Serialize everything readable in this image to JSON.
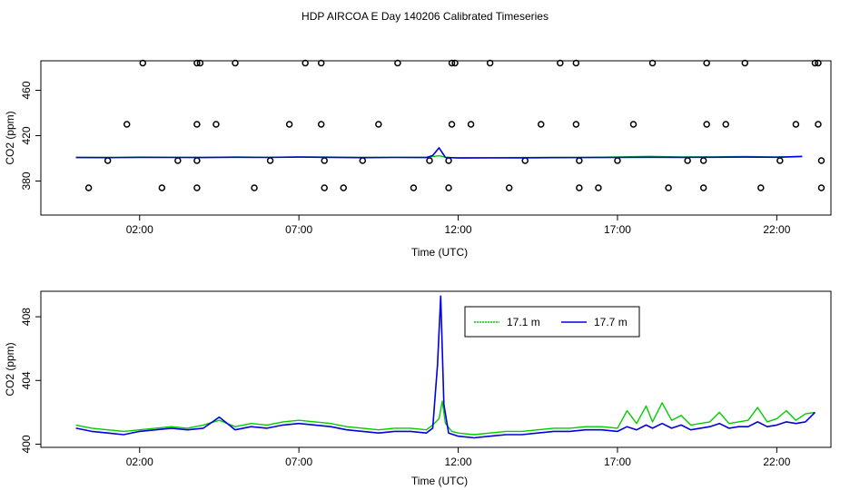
{
  "title": "HDP AIRCOA E  Day 140206  Calibrated Timeseries",
  "colors": {
    "series_1": "#00cc00",
    "series_2": "#0000dd",
    "points": "#000000",
    "axes": "#000000"
  },
  "chart_data": [
    {
      "type": "scatter+line",
      "xlabel": "Time (UTC)",
      "ylabel": "CO2 (ppm)",
      "xlim": [
        -1.1,
        23.7
      ],
      "ylim": [
        350,
        486
      ],
      "xticks": [
        2,
        7,
        12,
        17,
        22
      ],
      "xtick_labels": [
        "02:00",
        "07:00",
        "12:00",
        "17:00",
        "22:00"
      ],
      "yticks": [
        380,
        420,
        460
      ],
      "ytick_labels": [
        "380",
        "420",
        "460"
      ],
      "grid": false,
      "points": {
        "name": "",
        "x": [
          0.4,
          1.0,
          1.6,
          2.1,
          2.7,
          3.2,
          3.8,
          3.8,
          3.8,
          3.8,
          3.9,
          4.4,
          5.0,
          5.6,
          6.1,
          6.7,
          7.2,
          7.7,
          7.7,
          7.8,
          7.8,
          8.4,
          9.0,
          9.5,
          10.1,
          10.6,
          11.1,
          11.7,
          11.7,
          11.8,
          11.8,
          11.9,
          12.4,
          13.0,
          13.6,
          14.1,
          14.6,
          15.2,
          15.7,
          15.7,
          15.8,
          15.8,
          16.4,
          17.0,
          17.5,
          18.1,
          18.6,
          19.2,
          19.7,
          19.7,
          19.8,
          19.8,
          20.4,
          21.0,
          21.5,
          22.1,
          22.6,
          23.2,
          23.3,
          23.3,
          23.4,
          23.4
        ],
        "y": [
          374,
          398,
          430,
          484,
          374,
          398,
          374,
          398,
          430,
          484,
          484,
          430,
          484,
          374,
          398,
          430,
          484,
          484,
          430,
          398,
          374,
          374,
          398,
          430,
          484,
          374,
          398,
          374,
          398,
          430,
          484,
          484,
          430,
          484,
          374,
          398,
          430,
          484,
          484,
          430,
          398,
          374,
          374,
          398,
          430,
          484,
          374,
          398,
          374,
          398,
          430,
          484,
          430,
          484,
          374,
          398,
          430,
          484,
          484,
          430,
          398,
          374
        ]
      },
      "series": [
        {
          "name": "17.1 m",
          "x": [
            0,
            1,
            2,
            3,
            4,
            5,
            6,
            7,
            8,
            9,
            10,
            11,
            11.2,
            11.4,
            11.6,
            12,
            13,
            14,
            15,
            16,
            17,
            18,
            19,
            20,
            21,
            22,
            22.8
          ],
          "y": [
            400.9,
            400.8,
            401.1,
            401.0,
            400.9,
            401.2,
            401.0,
            401.3,
            401.1,
            400.8,
            401.0,
            400.9,
            401.5,
            402.3,
            401.0,
            400.5,
            400.6,
            400.7,
            400.8,
            400.9,
            401.2,
            401.8,
            401.3,
            401.4,
            401.6,
            401.3,
            401.8
          ]
        },
        {
          "name": "17.7 m",
          "x": [
            0,
            1,
            2,
            3,
            4,
            5,
            6,
            7,
            8,
            9,
            10,
            11,
            11.2,
            11.4,
            11.6,
            12,
            13,
            14,
            15,
            16,
            17,
            18,
            19,
            20,
            21,
            22,
            22.8
          ],
          "y": [
            400.7,
            400.6,
            400.9,
            400.8,
            400.7,
            401.0,
            400.8,
            401.1,
            400.9,
            400.6,
            400.8,
            400.7,
            402.5,
            409.3,
            400.8,
            400.3,
            400.4,
            400.5,
            400.6,
            400.7,
            400.8,
            401.0,
            400.9,
            401.0,
            401.1,
            401.0,
            401.7
          ]
        }
      ]
    },
    {
      "type": "line",
      "xlabel": "Time (UTC)",
      "ylabel": "CO2 (ppm)",
      "xlim": [
        -1.1,
        23.7
      ],
      "ylim": [
        399.8,
        409.6
      ],
      "xticks": [
        2,
        7,
        12,
        17,
        22
      ],
      "xtick_labels": [
        "02:00",
        "07:00",
        "12:00",
        "17:00",
        "22:00"
      ],
      "yticks": [
        400,
        404,
        408
      ],
      "ytick_labels": [
        "400",
        "404",
        "408"
      ],
      "grid": false,
      "legend": {
        "placement": "top-center",
        "entries": [
          "17.1 m",
          "17.7 m"
        ]
      },
      "series": [
        {
          "name": "17.1 m",
          "x": [
            0,
            0.5,
            1,
            1.5,
            2,
            2.5,
            3,
            3.5,
            4,
            4.5,
            5,
            5.5,
            6,
            6.5,
            7,
            7.5,
            8,
            8.5,
            9,
            9.5,
            10,
            10.5,
            11,
            11.2,
            11.4,
            11.5,
            11.6,
            11.8,
            12,
            12.5,
            13,
            13.5,
            14,
            14.5,
            15,
            15.5,
            16,
            16.5,
            17,
            17.3,
            17.6,
            17.9,
            18.1,
            18.4,
            18.7,
            19,
            19.3,
            19.6,
            19.9,
            20.2,
            20.5,
            20.8,
            21.1,
            21.4,
            21.7,
            22,
            22.3,
            22.6,
            22.9,
            23.2
          ],
          "y": [
            401.2,
            401.0,
            400.9,
            400.8,
            400.9,
            401.0,
            401.1,
            401.0,
            401.2,
            401.5,
            401.1,
            401.3,
            401.2,
            401.4,
            401.5,
            401.4,
            401.3,
            401.1,
            401.0,
            400.9,
            401.0,
            401.0,
            400.9,
            401.2,
            401.6,
            402.7,
            401.3,
            400.8,
            400.7,
            400.6,
            400.7,
            400.8,
            400.8,
            400.9,
            401.0,
            401.0,
            401.1,
            401.1,
            401.0,
            402.1,
            401.3,
            402.4,
            401.4,
            402.6,
            401.5,
            401.8,
            401.2,
            401.3,
            401.4,
            402.0,
            401.3,
            401.4,
            401.5,
            402.3,
            401.4,
            401.6,
            402.1,
            401.5,
            401.9,
            402.0
          ]
        },
        {
          "name": "17.7 m",
          "x": [
            0,
            0.5,
            1,
            1.5,
            2,
            2.5,
            3,
            3.5,
            4,
            4.5,
            5,
            5.5,
            6,
            6.5,
            7,
            7.5,
            8,
            8.5,
            9,
            9.5,
            10,
            10.5,
            11,
            11.2,
            11.35,
            11.45,
            11.55,
            11.7,
            12,
            12.5,
            13,
            13.5,
            14,
            14.5,
            15,
            15.5,
            16,
            16.5,
            17,
            17.3,
            17.6,
            17.9,
            18.1,
            18.4,
            18.7,
            19,
            19.3,
            19.6,
            19.9,
            20.2,
            20.5,
            20.8,
            21.1,
            21.4,
            21.7,
            22,
            22.3,
            22.6,
            22.9,
            23.2
          ],
          "y": [
            401.0,
            400.8,
            400.7,
            400.6,
            400.8,
            400.9,
            401.0,
            400.9,
            401.0,
            401.7,
            400.9,
            401.1,
            401.0,
            401.2,
            401.3,
            401.2,
            401.1,
            400.9,
            400.8,
            400.7,
            400.8,
            400.8,
            400.7,
            401.0,
            405.0,
            409.3,
            402.5,
            400.7,
            400.5,
            400.4,
            400.5,
            400.6,
            400.6,
            400.7,
            400.8,
            400.8,
            400.9,
            400.9,
            400.8,
            401.1,
            400.9,
            401.2,
            401.0,
            401.3,
            401.0,
            401.2,
            400.9,
            401.0,
            401.1,
            401.3,
            401.0,
            401.1,
            401.1,
            401.4,
            401.1,
            401.2,
            401.4,
            401.3,
            401.4,
            402.0
          ]
        }
      ]
    }
  ]
}
